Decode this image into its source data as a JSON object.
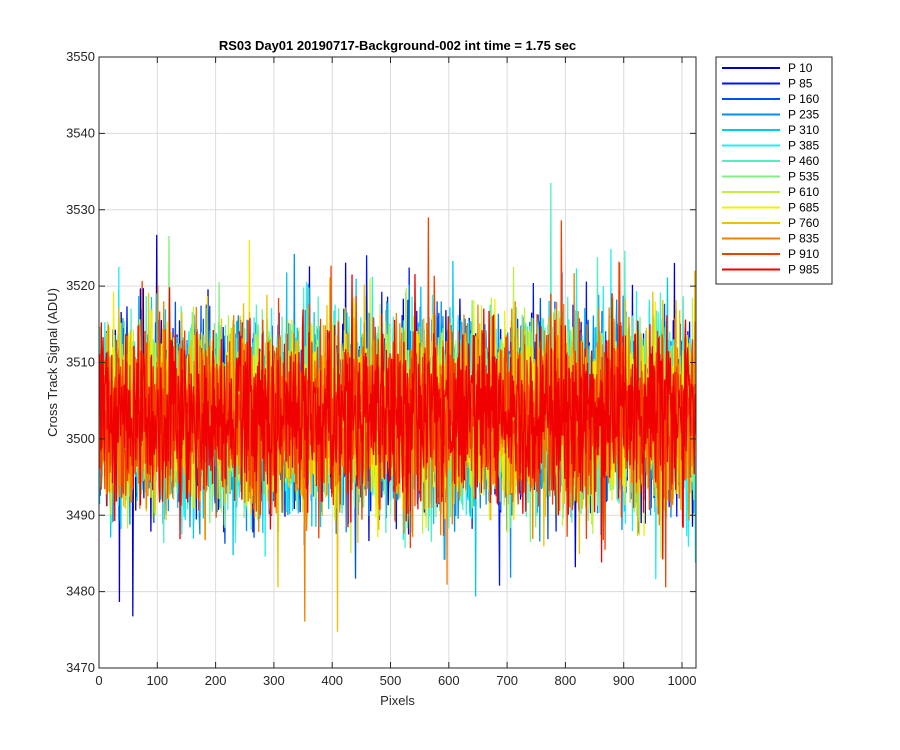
{
  "chart_data": {
    "type": "line",
    "title": "RS03 Day01 20190717-Background-002 int time = 1.75 sec",
    "xlabel": "Pixels",
    "ylabel": "Cross Track Signal (ADU)",
    "xlim": [
      0,
      1024
    ],
    "ylim": [
      3470,
      3550
    ],
    "xticks": [
      0,
      100,
      200,
      300,
      400,
      500,
      600,
      700,
      800,
      900,
      1000
    ],
    "yticks": [
      3470,
      3480,
      3490,
      3500,
      3510,
      3520,
      3530,
      3540,
      3550
    ],
    "grid": true,
    "legend_position": "outside-top-right",
    "noise_center": 3503,
    "noise_amplitude": 12,
    "series": [
      {
        "name": "P 10",
        "color": "#0000c8"
      },
      {
        "name": "P 85",
        "color": "#0014ef"
      },
      {
        "name": "P 160",
        "color": "#0050f0"
      },
      {
        "name": "P 235",
        "color": "#0090f0"
      },
      {
        "name": "P 310",
        "color": "#00c8f0"
      },
      {
        "name": "P 385",
        "color": "#20f0f0"
      },
      {
        "name": "P 460",
        "color": "#50f0c0"
      },
      {
        "name": "P 535",
        "color": "#80f080"
      },
      {
        "name": "P 610",
        "color": "#c0f040"
      },
      {
        "name": "P 685",
        "color": "#f0f000"
      },
      {
        "name": "P 760",
        "color": "#f0c000"
      },
      {
        "name": "P 835",
        "color": "#f08000"
      },
      {
        "name": "P 910",
        "color": "#f04000"
      },
      {
        "name": "P 985",
        "color": "#f00000"
      }
    ]
  }
}
